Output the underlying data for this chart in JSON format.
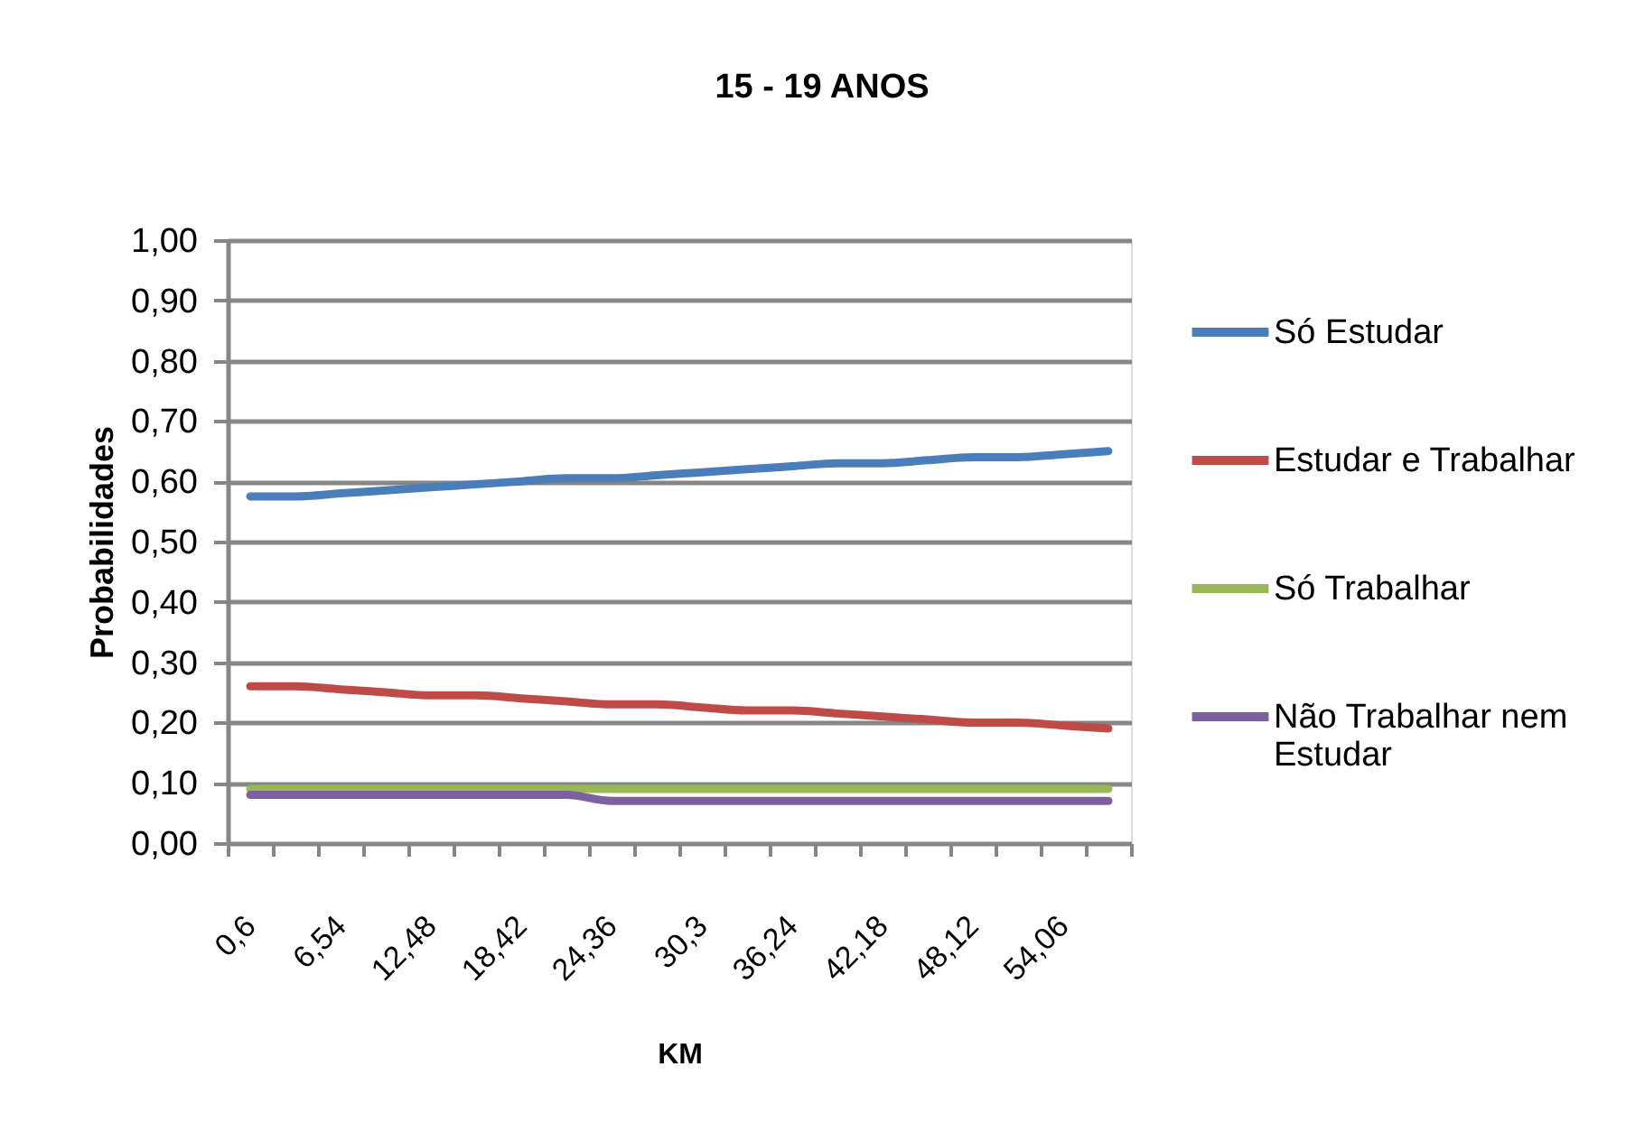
{
  "chart_data": {
    "type": "line",
    "title": "15 - 19 ANOS",
    "xlabel": "KM",
    "ylabel": "Probabilidades",
    "categories": [
      "0,6",
      null,
      "6,54",
      null,
      "12,48",
      null,
      "18,42",
      null,
      "24,36",
      null,
      "30,3",
      null,
      "36,24",
      null,
      "42,18",
      null,
      "48,12",
      null,
      "54,06",
      null
    ],
    "ylim": [
      0,
      1
    ],
    "yticks": [
      {
        "value": 0,
        "label": "0,00"
      },
      {
        "value": 0.1,
        "label": "0,10"
      },
      {
        "value": 0.2,
        "label": "0,20"
      },
      {
        "value": 0.3,
        "label": "0,30"
      },
      {
        "value": 0.4,
        "label": "0,40"
      },
      {
        "value": 0.5,
        "label": "0,50"
      },
      {
        "value": 0.6,
        "label": "0,60"
      },
      {
        "value": 0.7,
        "label": "0,70"
      },
      {
        "value": 0.8,
        "label": "0,80"
      },
      {
        "value": 0.9,
        "label": "0,90"
      },
      {
        "value": 1,
        "label": "1,00"
      }
    ],
    "grid": "y",
    "legend": "right",
    "series": [
      {
        "name": "Só Estudar",
        "color": "#4a7ebb",
        "values": [
          0.575,
          0.575,
          0.58,
          0.585,
          0.59,
          0.595,
          0.6,
          0.605,
          0.605,
          0.61,
          0.615,
          0.62,
          0.625,
          0.63,
          0.63,
          0.635,
          0.64,
          0.64,
          0.645,
          0.65
        ]
      },
      {
        "name": "Estudar e Trabalhar",
        "color": "#be4b48",
        "values": [
          0.26,
          0.26,
          0.255,
          0.25,
          0.245,
          0.245,
          0.24,
          0.235,
          0.23,
          0.23,
          0.225,
          0.22,
          0.22,
          0.215,
          0.21,
          0.205,
          0.2,
          0.2,
          0.195,
          0.19
        ]
      },
      {
        "name": "Só Trabalhar",
        "color": "#98b954",
        "values": [
          0.09,
          0.09,
          0.09,
          0.09,
          0.09,
          0.09,
          0.09,
          0.09,
          0.09,
          0.09,
          0.09,
          0.09,
          0.09,
          0.09,
          0.09,
          0.09,
          0.09,
          0.09,
          0.09,
          0.09
        ]
      },
      {
        "name": "Não Trabalhar nem Estudar",
        "color": "#7d60a0",
        "values": [
          0.08,
          0.08,
          0.08,
          0.08,
          0.08,
          0.08,
          0.08,
          0.08,
          0.07,
          0.07,
          0.07,
          0.07,
          0.07,
          0.07,
          0.07,
          0.07,
          0.07,
          0.07,
          0.07,
          0.07
        ]
      }
    ]
  }
}
